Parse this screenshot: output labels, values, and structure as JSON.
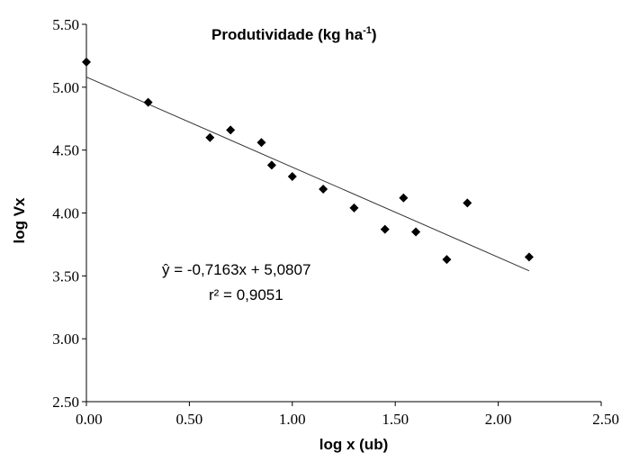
{
  "chart_data": {
    "type": "scatter",
    "title": "Produtividade  (kg ha",
    "title_superscript": "-1",
    "title_suffix": ")",
    "xlabel": "log x (ub)",
    "ylabel": "log Vx",
    "xlim": [
      0.0,
      2.5
    ],
    "ylim": [
      2.5,
      5.5
    ],
    "x_ticks": [
      0.0,
      0.5,
      1.0,
      1.5,
      2.0,
      2.5
    ],
    "x_tick_labels": [
      "0.00",
      "0.50",
      "1.00",
      "1.50",
      "2.00",
      "2.50"
    ],
    "y_ticks": [
      2.5,
      3.0,
      3.5,
      4.0,
      4.5,
      5.0,
      5.5
    ],
    "y_tick_labels": [
      "2.50",
      "3.00",
      "3.50",
      "4.00",
      "4.50",
      "5.00",
      "5.50"
    ],
    "grid": false,
    "marker": "diamond",
    "marker_color": "#000000",
    "points": [
      {
        "x": 0.0,
        "y": 5.2
      },
      {
        "x": 0.3,
        "y": 4.88
      },
      {
        "x": 0.6,
        "y": 4.6
      },
      {
        "x": 0.7,
        "y": 4.66
      },
      {
        "x": 0.85,
        "y": 4.56
      },
      {
        "x": 0.9,
        "y": 4.38
      },
      {
        "x": 1.0,
        "y": 4.29
      },
      {
        "x": 1.15,
        "y": 4.19
      },
      {
        "x": 1.3,
        "y": 4.04
      },
      {
        "x": 1.45,
        "y": 3.87
      },
      {
        "x": 1.54,
        "y": 4.12
      },
      {
        "x": 1.6,
        "y": 3.85
      },
      {
        "x": 1.75,
        "y": 3.63
      },
      {
        "x": 1.85,
        "y": 4.08
      },
      {
        "x": 2.15,
        "y": 3.65
      }
    ],
    "trendline": {
      "slope": -0.7163,
      "intercept": 5.0807,
      "x_start": 0.0,
      "x_end": 2.15
    },
    "equation_line1": "ŷ = -0,7163x + 5,0807",
    "equation_line2": "r² = 0,9051"
  }
}
